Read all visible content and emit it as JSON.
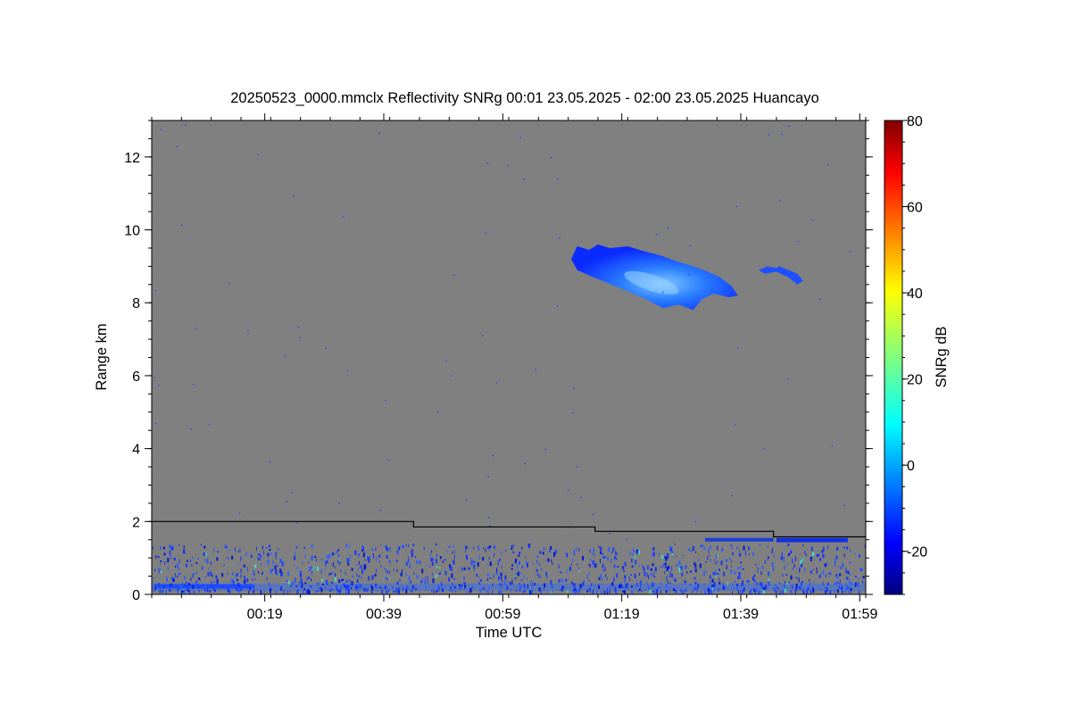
{
  "chart_data": {
    "type": "heatmap",
    "title": "20250523_0000.mmclx Reflectivity SNRg   00:01 23.05.2025 - 02:00 23.05.2025 Huancayo",
    "xlabel": "Time UTC",
    "ylabel": "Range km",
    "xlim_minutes": [
      0,
      120
    ],
    "ylim_km": [
      0,
      13
    ],
    "x_ticks": [
      {
        "minute": 19,
        "label": "00:19"
      },
      {
        "minute": 39,
        "label": "00:39"
      },
      {
        "minute": 59,
        "label": "00:59"
      },
      {
        "minute": 79,
        "label": "01:19"
      },
      {
        "minute": 99,
        "label": "01:39"
      },
      {
        "minute": 119,
        "label": "01:59"
      }
    ],
    "y_ticks": [
      {
        "value": 0,
        "label": "0"
      },
      {
        "value": 2,
        "label": "2"
      },
      {
        "value": 4,
        "label": "4"
      },
      {
        "value": 6,
        "label": "6"
      },
      {
        "value": 8,
        "label": "8"
      },
      {
        "value": 10,
        "label": "10"
      },
      {
        "value": 12,
        "label": "12"
      }
    ],
    "colorbar": {
      "label": "SNRg dB",
      "min": -30,
      "max": 80,
      "ticks": [
        {
          "value": -20,
          "label": "-20"
        },
        {
          "value": 0,
          "label": "0"
        },
        {
          "value": 20,
          "label": "20"
        },
        {
          "value": 40,
          "label": "40"
        },
        {
          "value": 60,
          "label": "60"
        },
        {
          "value": 80,
          "label": "80"
        }
      ],
      "colormap": "jet"
    },
    "background_color": "#808080",
    "boundary_line_km": [
      {
        "from_minute": 0,
        "to_minute": 44,
        "height": 2.0
      },
      {
        "from_minute": 44,
        "to_minute": 74.5,
        "height": 1.85
      },
      {
        "from_minute": 74.5,
        "to_minute": 104.5,
        "height": 1.73
      },
      {
        "from_minute": 104.5,
        "to_minute": 120,
        "height": 1.58
      }
    ],
    "features": [
      {
        "name": "cloud",
        "minute_range": [
          70.5,
          98.5
        ],
        "range_km": [
          7.8,
          9.6
        ],
        "snr_db_range": [
          -20,
          0
        ]
      },
      {
        "name": "small-cloud",
        "minute_range": [
          102,
          109.5
        ],
        "range_km": [
          8.5,
          9.0
        ],
        "snr_db_range": [
          -20,
          -10
        ]
      },
      {
        "name": "upper-layer",
        "minute_range": [
          93,
          104.5
        ],
        "range_km": [
          1.45,
          1.55
        ],
        "snr_db_range": [
          -25,
          -15
        ]
      },
      {
        "name": "upper-layer-2",
        "minute_range": [
          105,
          117
        ],
        "range_km": [
          1.43,
          1.55
        ],
        "snr_db_range": [
          -25,
          -10
        ]
      },
      {
        "name": "near-surface-clutter",
        "minute_range": [
          0,
          120
        ],
        "range_km": [
          0.1,
          1.4
        ],
        "snr_db_range": [
          -25,
          10
        ]
      }
    ]
  }
}
